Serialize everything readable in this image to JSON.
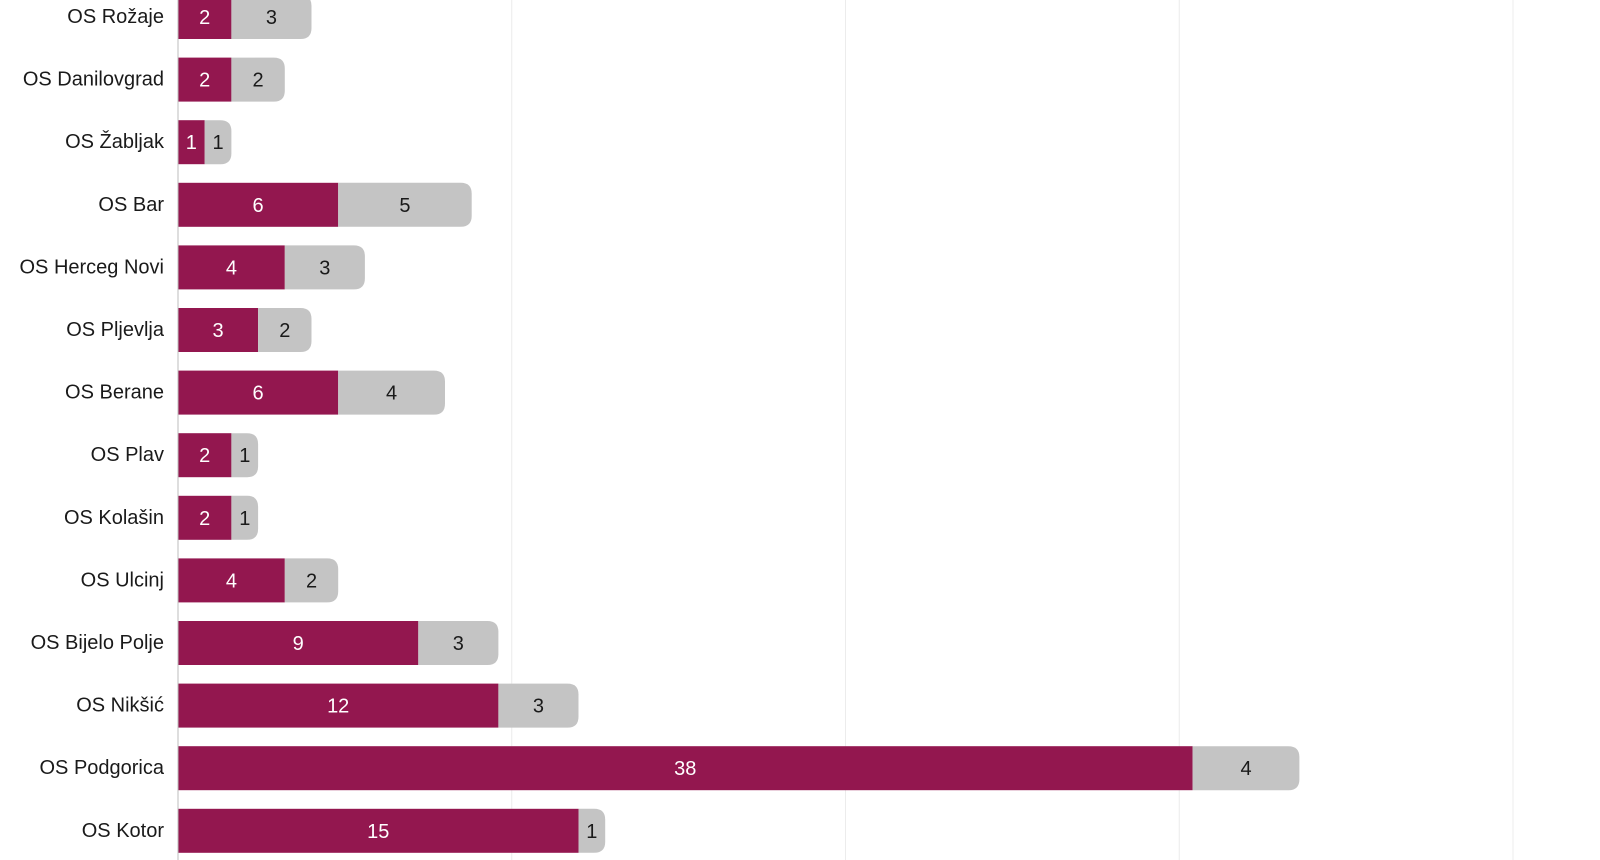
{
  "chart_data": {
    "type": "bar",
    "orientation": "horizontal",
    "stacked": true,
    "title": "",
    "xlabel": "",
    "ylabel": "",
    "xlim": [
      0,
      50
    ],
    "grid": true,
    "legend": "none",
    "categories": [
      "OS Rožaje",
      "OS Danilovgrad",
      "OS Žabljak",
      "OS Bar",
      "OS Herceg Novi",
      "OS Pljevlja",
      "OS Berane",
      "OS Plav",
      "OS Kolašin",
      "OS Ulcinj",
      "OS Bijelo Polje",
      "OS Nikšić",
      "OS Podgorica",
      "OS Kotor"
    ],
    "series": [
      {
        "color": "#93174f",
        "label_color": "#ffffff",
        "values": [
          2,
          2,
          1,
          6,
          4,
          3,
          6,
          2,
          2,
          4,
          9,
          12,
          38,
          15
        ]
      },
      {
        "color": "#c4c4c4",
        "label_color": "#1a1a1a",
        "values": [
          3,
          2,
          1,
          5,
          3,
          2,
          4,
          1,
          1,
          2,
          3,
          3,
          4,
          1
        ]
      }
    ]
  }
}
